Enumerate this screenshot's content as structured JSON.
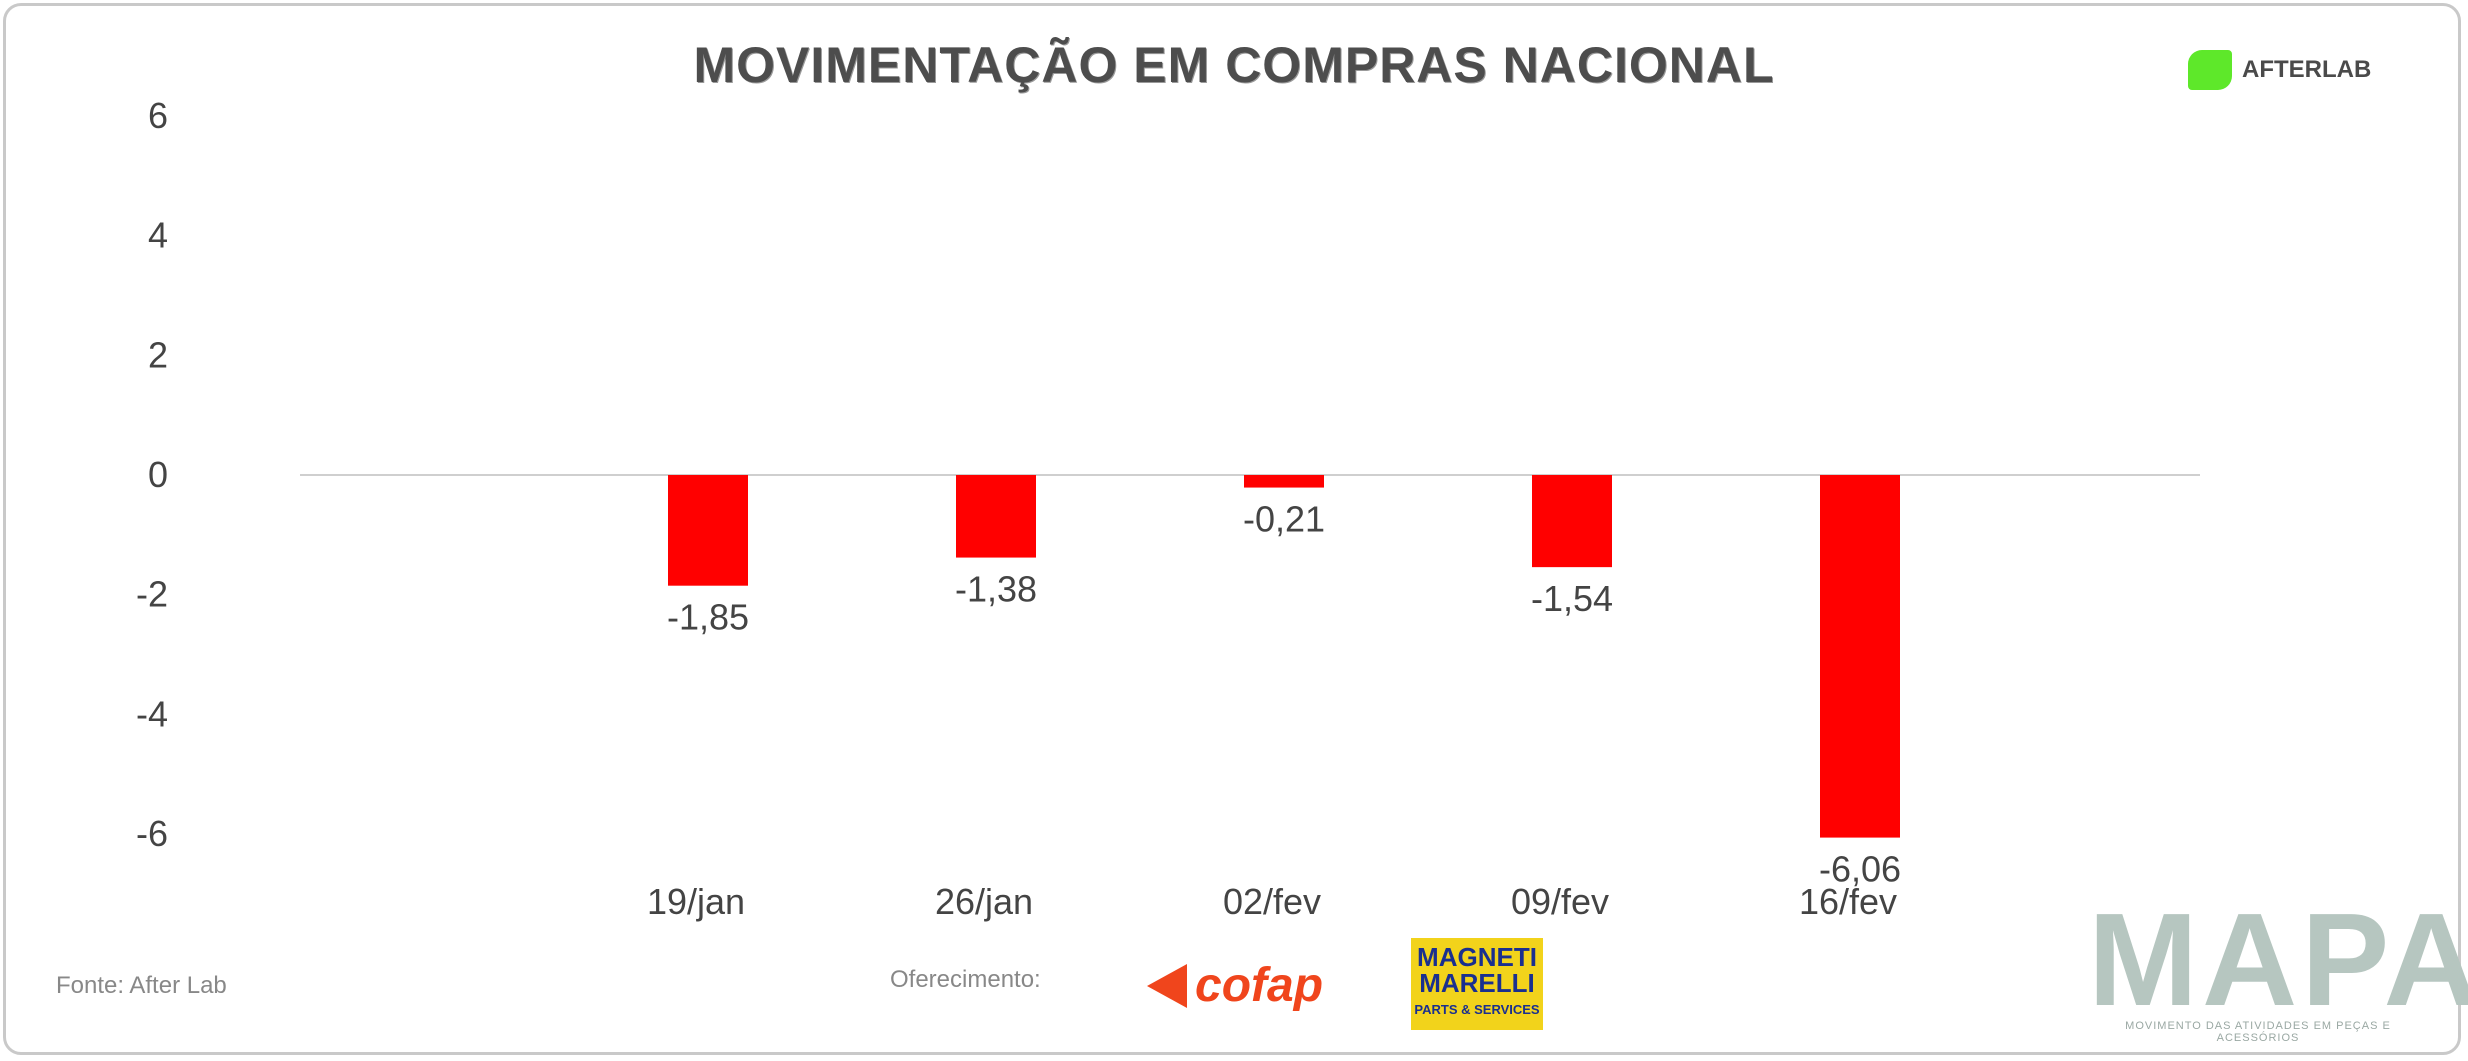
{
  "title": "MOVIMENTAÇÃO EM COMPRAS NACIONAL",
  "partner_logo": {
    "name": "AFTERLAB",
    "icon": "afterlab-icon"
  },
  "source": "Fonte: After Lab",
  "sponsor_label": "Oferecimento:",
  "sponsors": [
    {
      "name": "cofap",
      "color": "#f0451c"
    },
    {
      "name": "MAGNETI MARELLI",
      "sub": "PARTS & SERVICES",
      "color": "#1a2f8f",
      "bg": "#f2d31b"
    }
  ],
  "brand": {
    "name": "MAPA",
    "tagline": "MOVIMENTO DAS ATIVIDADES EM PEÇAS E ACESSÓRIOS"
  },
  "chart_data": {
    "type": "bar",
    "categories": [
      "19/jan",
      "26/jan",
      "02/fev",
      "09/fev",
      "16/fev"
    ],
    "values": [
      -1.85,
      -1.38,
      -0.21,
      -1.54,
      -6.06
    ],
    "data_labels": [
      "-1,85",
      "-1,38",
      "-0,21",
      "-1,54",
      "-6,06"
    ],
    "ylim": [
      -6,
      6
    ],
    "yticks": [
      6,
      4,
      2,
      0,
      -2,
      -4,
      -6
    ],
    "bar_color": "#ff0000",
    "grid": false,
    "xlabel": "",
    "ylabel": ""
  }
}
